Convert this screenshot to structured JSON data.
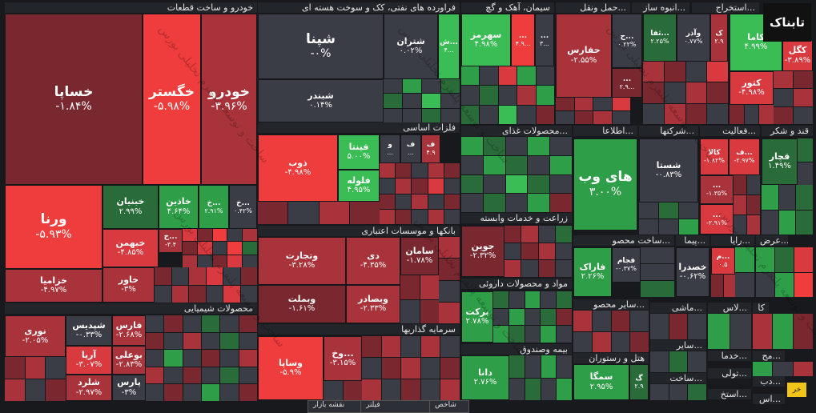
{
  "logo_text": "تابناک",
  "watermark": "ساخت و توسعه پلتفرم تحلیلی بورس",
  "bottom_tabs": [
    "نقشه بازار",
    "فیلتر",
    "شاخص"
  ],
  "sectors": {
    "auto": "خودرو و ساخت قطعات",
    "oil": "فراورده های نفتی، کک و سوخت هسته ای",
    "cement": "سیمان، آهک و گچ",
    "transport": "حمل ونقل...",
    "mass": "انبوه ساز...",
    "extract": "استخراج...",
    "metal": "فلزات اساسی",
    "food": "محصولات غذای...",
    "info": "اطلاعا...",
    "holding": "شرکتها...",
    "activ": "فعالیت...",
    "sugar": "قند و شکر",
    "chem": "محصولات شیمیایی",
    "bank": "بانکها و موسسات اعتباری",
    "agri": "زراعت و خدمات وابسته",
    "build": "ساخت محصو...",
    "pipe": "پیما...",
    "rayan": "رایا...",
    "arz": "عرض...",
    "pharma": "مواد و محصولات داروئی",
    "invest": "سرمایه گذاریها",
    "other": "سایر محصو...",
    "mashi": "ماشی...",
    "las": "لاس...",
    "ka": "کا",
    "insure": "بیمه وصندوق",
    "hotel": "هتل و رستوران",
    "sayer": "سایر...",
    "khadamat": "خدما...",
    "mo": "مح...",
    "sakht": "ساخت...",
    "tuli": "تولی...",
    "dab": "دب...",
    "estekh": "استخ...",
    "es": "اس...",
    "kh": "خر"
  },
  "cells": {
    "khsapa": {
      "name": "خساپا",
      "val": "-۱.۸۴%"
    },
    "khgostar": {
      "name": "خگستر",
      "val": "-۵.۹۸%"
    },
    "khodro": {
      "name": "خودرو",
      "val": "-۳.۹۶%"
    },
    "vorna": {
      "name": "ورنا",
      "val": "-۵.۹۳%"
    },
    "khbinyan": {
      "name": "خبنیان",
      "val": "۲.۹۹%"
    },
    "khzagin": {
      "name": "خاذین",
      "val": "۴.۶۴%"
    },
    "khg": {
      "name": "خ...",
      "val": "۲.۹۱%"
    },
    "khk": {
      "name": "خ...",
      "val": "۰.۴۲%"
    },
    "khmehn": {
      "name": "خبهمن",
      "val": "-۴.۸۵%"
    },
    "khzamia": {
      "name": "خزامیا",
      "val": "-۴.۹۷%"
    },
    "khavar": {
      "name": "خاور",
      "val": "-۳%"
    },
    "khsmall": {
      "name": "خ...",
      "val": "-۳.۴"
    },
    "shepna": {
      "name": "شپنا",
      "val": "-۰%"
    },
    "shatran": {
      "name": "شتران",
      "val": "۰.۰۲%"
    },
    "shb": {
      "name": "ش...",
      "val": "۴..."
    },
    "shbandar": {
      "name": "شبندر",
      "val": "۰.۱۴%"
    },
    "sahrmz": {
      "name": "سهرمز",
      "val": "۴.۹۸%"
    },
    "cem2": {
      "name": "...",
      "val": "۴.۹..."
    },
    "cem3": {
      "name": "...",
      "val": "۳..."
    },
    "hafars": {
      "name": "حفارس",
      "val": "-۲.۵۵%"
    },
    "htrans": {
      "name": "ح...",
      "val": "۰.۲۲%"
    },
    "tr3": {
      "name": "...",
      "val": "۲.۹..."
    },
    "sofa": {
      "name": "ثفا...",
      "val": "۲.۲۵%"
    },
    "saozar": {
      "name": "وآذر",
      "val": "۰.۷۷%"
    },
    "ks": {
      "name": "ک",
      "val": "۲.۹"
    },
    "khame": {
      "name": "کاما",
      "val": "۴.۹۹%"
    },
    "kakhgol": {
      "name": "کگل",
      "val": "-۳.۸۹%"
    },
    "katonr": {
      "name": "کتور",
      "val": "-۴.۹۸%"
    },
    "zob": {
      "name": "ذوب",
      "val": "-۴.۹۸%"
    },
    "finta": {
      "name": "فینتا",
      "val": "۵.۰۰%"
    },
    "folulah": {
      "name": "فلوله",
      "val": "۴.۹۵%"
    },
    "f1": {
      "name": "و",
      "val": "..."
    },
    "f2": {
      "name": "ف",
      "val": "..."
    },
    "f3": {
      "name": "ف",
      "val": "۴.۹"
    },
    "haweb": {
      "name": "های وب",
      "val": "۳.۰۰%"
    },
    "shasta": {
      "name": "شستا",
      "val": "-۰.۸۳%"
    },
    "kala": {
      "name": "کالا",
      "val": "-۱.۸۲%"
    },
    "fbig": {
      "name": "ف...",
      "val": "-۲.۹۷%"
    },
    "ghachar": {
      "name": "قچار",
      "val": "۱.۴۹%"
    },
    "hold2": {
      "name": "...",
      "val": "-۱.۳۵%"
    },
    "hold3": {
      "name": "...",
      "val": "-۲.۹۱%"
    },
    "vtejarat": {
      "name": "وتجارت",
      "val": "-۳.۲۸%"
    },
    "di": {
      "name": "دی",
      "val": "-۴.۳۵%"
    },
    "saman": {
      "name": "سامان",
      "val": "-۱.۷۸%"
    },
    "vbmelat": {
      "name": "وبملت",
      "val": "-۱.۶۱%"
    },
    "vbsadr": {
      "name": "وبصادر",
      "val": "-۲.۳۳%"
    },
    "jovain": {
      "name": "جوین",
      "val": "-۲.۳۲%"
    },
    "faraak": {
      "name": "فاراک",
      "val": "۲.۲۶%"
    },
    "fajam": {
      "name": "فجام",
      "val": "-۰.۳۷%"
    },
    "khsdra": {
      "name": "خصدرا",
      "val": "-۰.۶۲%"
    },
    "m1": {
      "name": "م...",
      "val": "۰.۵"
    },
    "barkat": {
      "name": "برکت",
      "val": "۲.۷۸%"
    },
    "vasapa": {
      "name": "وساپا",
      "val": "-۵.۹%"
    },
    "vkh": {
      "name": "وخ...",
      "val": "-۳.۱۵%"
    },
    "nouri": {
      "name": "نوری",
      "val": "-۲.۰۵%"
    },
    "shpadis": {
      "name": "شپدیس",
      "val": "-۰.۳۳%"
    },
    "fars": {
      "name": "فارس",
      "val": "-۲.۶۸%"
    },
    "aria": {
      "name": "آریا",
      "val": "-۳.۰۷%"
    },
    "bouali": {
      "name": "بوعلی",
      "val": "-۲.۸۳%"
    },
    "shlard": {
      "name": "شلرد",
      "val": "-۲.۹۷%"
    },
    "pars": {
      "name": "پارس",
      "val": "-۳%"
    },
    "dana": {
      "name": "دانا",
      "val": "۲.۷۶%"
    },
    "semga": {
      "name": "سمگا",
      "val": "۲.۹۵%"
    },
    "gs": {
      "name": "گ",
      "val": "۲.۹"
    }
  }
}
